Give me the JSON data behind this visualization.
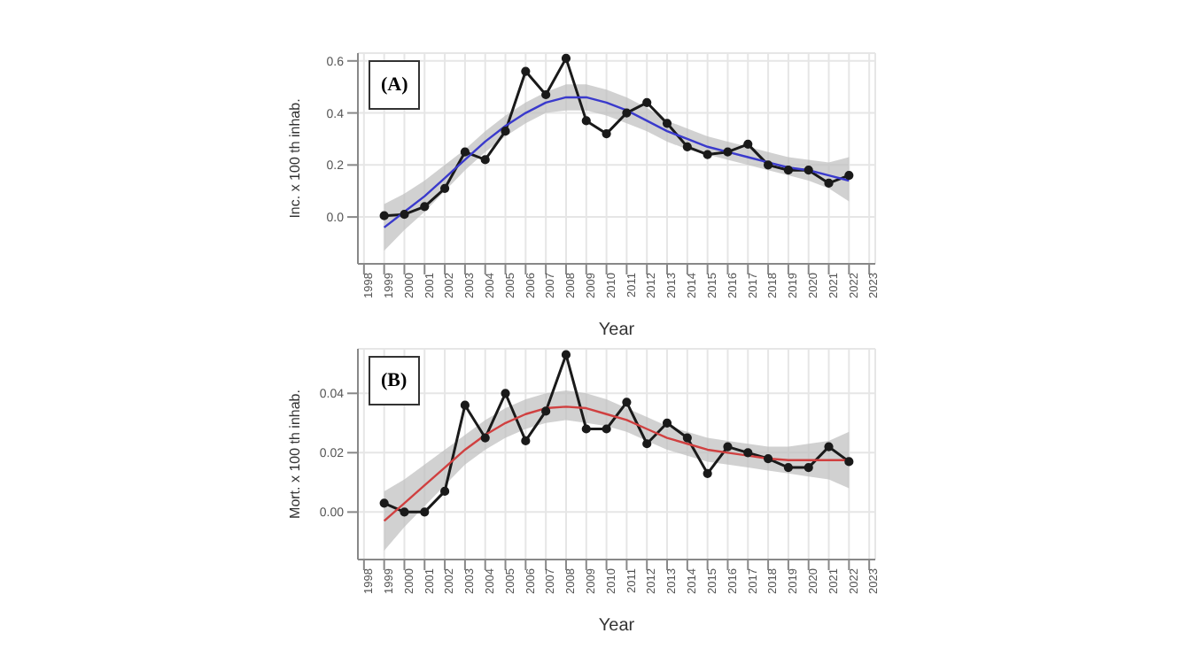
{
  "chart_data": [
    {
      "type": "line",
      "xlabel": "Year",
      "ylabel": "Inc. x 100 th inhab.",
      "annotations": [
        "(A)"
      ],
      "grid": true,
      "x": [
        1999,
        2000,
        2001,
        2002,
        2003,
        2004,
        2005,
        2006,
        2007,
        2008,
        2009,
        2010,
        2011,
        2012,
        2013,
        2014,
        2015,
        2016,
        2017,
        2018,
        2019,
        2020,
        2021,
        2022
      ],
      "series": [
        {
          "color": "#1a1a1a",
          "marker": "circle",
          "values": [
            0.005,
            0.01,
            0.04,
            0.11,
            0.25,
            0.22,
            0.33,
            0.56,
            0.47,
            0.61,
            0.37,
            0.32,
            0.4,
            0.44,
            0.36,
            0.27,
            0.24,
            0.25,
            0.28,
            0.2,
            0.18,
            0.18,
            0.13,
            0.16
          ]
        },
        {
          "color": "#3a3acc",
          "marker": "none",
          "values": [
            -0.04,
            0.02,
            0.08,
            0.15,
            0.22,
            0.29,
            0.35,
            0.4,
            0.44,
            0.46,
            0.46,
            0.44,
            0.41,
            0.37,
            0.33,
            0.3,
            0.27,
            0.25,
            0.23,
            0.21,
            0.19,
            0.18,
            0.16,
            0.14
          ],
          "lower": [
            -0.13,
            -0.05,
            0.02,
            0.1,
            0.18,
            0.25,
            0.31,
            0.36,
            0.4,
            0.41,
            0.41,
            0.39,
            0.36,
            0.33,
            0.29,
            0.26,
            0.24,
            0.22,
            0.2,
            0.18,
            0.16,
            0.14,
            0.11,
            0.06
          ],
          "upper": [
            0.05,
            0.09,
            0.14,
            0.2,
            0.26,
            0.33,
            0.39,
            0.44,
            0.48,
            0.51,
            0.51,
            0.49,
            0.46,
            0.42,
            0.37,
            0.34,
            0.31,
            0.29,
            0.27,
            0.25,
            0.23,
            0.22,
            0.21,
            0.23
          ]
        }
      ],
      "xlim": [
        1997.7,
        2023.3
      ],
      "xticks": [
        1998,
        1999,
        2000,
        2001,
        2002,
        2003,
        2004,
        2005,
        2006,
        2007,
        2008,
        2009,
        2010,
        2011,
        2012,
        2013,
        2014,
        2015,
        2016,
        2017,
        2018,
        2019,
        2020,
        2021,
        2022,
        2023
      ],
      "ylim": [
        -0.18,
        0.63
      ],
      "yticks": [
        {
          "value": 0,
          "label": "0.0"
        },
        {
          "value": 0.2,
          "label": "0.2"
        },
        {
          "value": 0.4,
          "label": "0.4"
        },
        {
          "value": 0.6,
          "label": "0.6"
        }
      ]
    },
    {
      "type": "line",
      "xlabel": "Year",
      "ylabel": "Mort. x 100 th inhab.",
      "annotations": [
        "(B)"
      ],
      "grid": true,
      "x": [
        1999,
        2000,
        2001,
        2002,
        2003,
        2004,
        2005,
        2006,
        2007,
        2008,
        2009,
        2010,
        2011,
        2012,
        2013,
        2014,
        2015,
        2016,
        2017,
        2018,
        2019,
        2020,
        2021,
        2022
      ],
      "series": [
        {
          "color": "#1a1a1a",
          "marker": "circle",
          "values": [
            0.003,
            0,
            0,
            0.007,
            0.036,
            0.025,
            0.04,
            0.024,
            0.034,
            0.053,
            0.028,
            0.028,
            0.037,
            0.023,
            0.03,
            0.025,
            0.013,
            0.022,
            0.02,
            0.018,
            0.015,
            0.015,
            0.022,
            0.017
          ]
        },
        {
          "color": "#d04040",
          "marker": "none",
          "values": [
            -0.003,
            0.003,
            0.009,
            0.015,
            0.021,
            0.026,
            0.03,
            0.033,
            0.035,
            0.0355,
            0.035,
            0.033,
            0.031,
            0.028,
            0.025,
            0.023,
            0.021,
            0.02,
            0.019,
            0.018,
            0.0175,
            0.0175,
            0.0175,
            0.0175
          ],
          "lower": [
            -0.013,
            -0.005,
            0.002,
            0.009,
            0.016,
            0.021,
            0.025,
            0.028,
            0.03,
            0.031,
            0.03,
            0.029,
            0.027,
            0.024,
            0.021,
            0.019,
            0.017,
            0.016,
            0.015,
            0.014,
            0.013,
            0.012,
            0.011,
            0.008
          ],
          "upper": [
            0.007,
            0.011,
            0.016,
            0.021,
            0.026,
            0.031,
            0.035,
            0.038,
            0.04,
            0.041,
            0.04,
            0.038,
            0.035,
            0.032,
            0.029,
            0.027,
            0.025,
            0.024,
            0.023,
            0.022,
            0.022,
            0.023,
            0.024,
            0.027
          ]
        }
      ],
      "xlim": [
        1997.7,
        2023.3
      ],
      "xticks": [
        1998,
        1999,
        2000,
        2001,
        2002,
        2003,
        2004,
        2005,
        2006,
        2007,
        2008,
        2009,
        2010,
        2011,
        2012,
        2013,
        2014,
        2015,
        2016,
        2017,
        2018,
        2019,
        2020,
        2021,
        2022,
        2023
      ],
      "ylim": [
        -0.016,
        0.055
      ],
      "yticks": [
        {
          "value": 0,
          "label": "0.00"
        },
        {
          "value": 0.02,
          "label": "0.02"
        },
        {
          "value": 0.04,
          "label": "0.04"
        }
      ]
    }
  ]
}
